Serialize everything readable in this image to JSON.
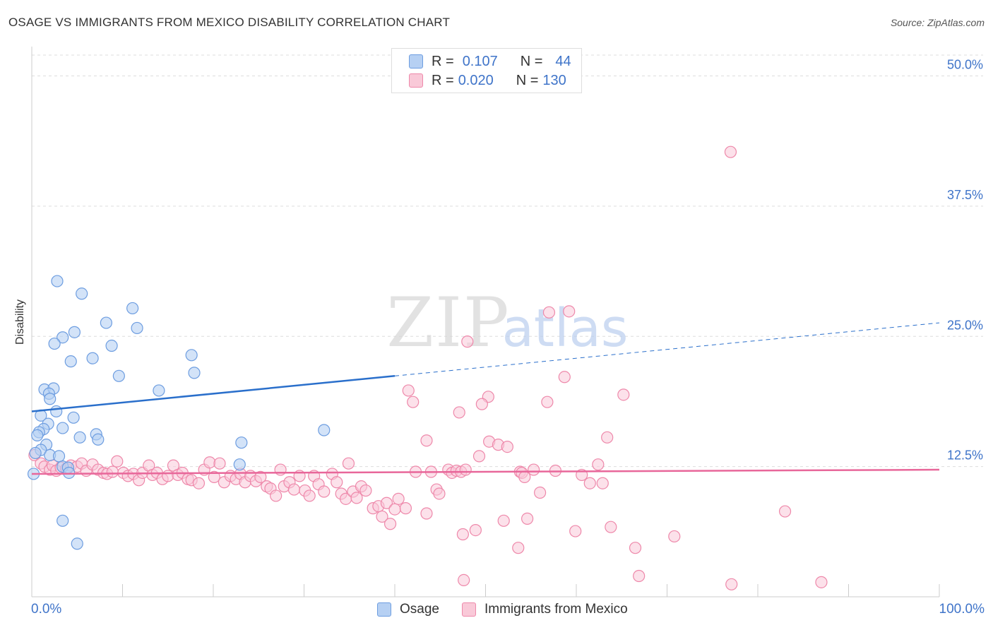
{
  "header": {
    "title": "OSAGE VS IMMIGRANTS FROM MEXICO DISABILITY CORRELATION CHART",
    "source": "Source: ZipAtlas.com"
  },
  "colors": {
    "osage_fill": "#b6d0f3",
    "osage_stroke": "#6d9de0",
    "osage_line": "#2a6fcb",
    "mexico_fill": "#f9c9d8",
    "mexico_stroke": "#ee88aa",
    "mexico_line": "#e8679a",
    "axis_label": "#3f74c9",
    "grid": "#dddddd"
  },
  "legend": {
    "rows": [
      {
        "r_label": "R =",
        "r_value": "0.107",
        "n_label": "N =",
        "n_value": "44"
      },
      {
        "r_label": "R =",
        "r_value": "0.020",
        "n_label": "N =",
        "n_value": "130"
      }
    ]
  },
  "watermark": {
    "zip": "ZIP",
    "atlas": "atlas"
  },
  "chart_data": {
    "type": "scatter",
    "title": "OSAGE VS IMMIGRANTS FROM MEXICO DISABILITY CORRELATION CHART",
    "xlabel": "",
    "ylabel": "Disability",
    "xlim": [
      0,
      100
    ],
    "ylim": [
      0,
      52
    ],
    "x_tick_labels": [
      "0.0%",
      "100.0%"
    ],
    "y_ticks": [
      12.5,
      25.0,
      37.5,
      50.0
    ],
    "y_tick_labels": [
      "12.5%",
      "25.0%",
      "37.5%",
      "50.0%"
    ],
    "grid": true,
    "legend_position": "bottom",
    "series": [
      {
        "name": "Osage",
        "r": 0.107,
        "n": 44,
        "trend": {
          "x": [
            0,
            40
          ],
          "y": [
            17.8,
            21.2
          ],
          "dashed_to": [
            100,
            26.3
          ]
        },
        "points": [
          [
            2.8,
            30.3
          ],
          [
            5.5,
            29.1
          ],
          [
            11.1,
            27.7
          ],
          [
            8.2,
            26.3
          ],
          [
            11.6,
            25.8
          ],
          [
            4.7,
            25.4
          ],
          [
            3.4,
            24.9
          ],
          [
            2.5,
            24.3
          ],
          [
            8.8,
            24.1
          ],
          [
            17.6,
            23.2
          ],
          [
            6.7,
            22.9
          ],
          [
            4.3,
            22.6
          ],
          [
            17.9,
            21.5
          ],
          [
            9.6,
            21.2
          ],
          [
            1.4,
            19.9
          ],
          [
            2.4,
            20.0
          ],
          [
            14.0,
            19.8
          ],
          [
            1.9,
            19.5
          ],
          [
            2.0,
            19.0
          ],
          [
            2.7,
            17.8
          ],
          [
            1.0,
            17.4
          ],
          [
            4.6,
            17.2
          ],
          [
            1.8,
            16.6
          ],
          [
            1.3,
            16.1
          ],
          [
            3.4,
            16.2
          ],
          [
            32.2,
            16.0
          ],
          [
            0.8,
            15.8
          ],
          [
            0.6,
            15.5
          ],
          [
            7.1,
            15.6
          ],
          [
            5.3,
            15.3
          ],
          [
            7.3,
            15.1
          ],
          [
            23.1,
            14.8
          ],
          [
            1.6,
            14.6
          ],
          [
            1.0,
            14.1
          ],
          [
            0.4,
            13.8
          ],
          [
            2.0,
            13.6
          ],
          [
            3.0,
            13.5
          ],
          [
            3.4,
            12.5
          ],
          [
            4.0,
            12.4
          ],
          [
            22.9,
            12.7
          ],
          [
            4.1,
            11.9
          ],
          [
            0.2,
            11.8
          ],
          [
            3.4,
            7.3
          ],
          [
            5.0,
            5.1
          ]
        ]
      },
      {
        "name": "Immigrants from Mexico",
        "r": 0.02,
        "n": 130,
        "trend": {
          "x": [
            0,
            100
          ],
          "y": [
            11.8,
            12.2
          ]
        },
        "points": [
          [
            77.0,
            42.7
          ],
          [
            57.0,
            27.3
          ],
          [
            59.2,
            27.4
          ],
          [
            48.0,
            24.5
          ],
          [
            58.7,
            21.1
          ],
          [
            41.5,
            19.8
          ],
          [
            50.3,
            19.2
          ],
          [
            65.2,
            19.4
          ],
          [
            42.0,
            18.7
          ],
          [
            49.6,
            18.5
          ],
          [
            56.8,
            18.7
          ],
          [
            47.1,
            17.7
          ],
          [
            43.5,
            15.0
          ],
          [
            50.4,
            14.9
          ],
          [
            63.4,
            15.3
          ],
          [
            51.4,
            14.6
          ],
          [
            52.4,
            14.4
          ],
          [
            49.3,
            13.5
          ],
          [
            62.4,
            12.7
          ],
          [
            0.3,
            13.6
          ],
          [
            1.0,
            12.8
          ],
          [
            1.4,
            12.5
          ],
          [
            2.0,
            12.2
          ],
          [
            2.3,
            12.6
          ],
          [
            2.7,
            12.1
          ],
          [
            3.2,
            12.4
          ],
          [
            3.8,
            12.3
          ],
          [
            4.3,
            12.6
          ],
          [
            5.0,
            12.5
          ],
          [
            5.5,
            12.8
          ],
          [
            6.0,
            12.1
          ],
          [
            6.7,
            12.7
          ],
          [
            7.3,
            12.2
          ],
          [
            7.9,
            11.9
          ],
          [
            8.3,
            11.8
          ],
          [
            8.9,
            12.0
          ],
          [
            9.4,
            13.0
          ],
          [
            10.1,
            11.9
          ],
          [
            10.6,
            11.6
          ],
          [
            11.2,
            11.8
          ],
          [
            11.8,
            11.2
          ],
          [
            12.2,
            11.9
          ],
          [
            12.9,
            12.6
          ],
          [
            13.3,
            11.7
          ],
          [
            13.8,
            11.9
          ],
          [
            14.4,
            11.3
          ],
          [
            15.0,
            11.6
          ],
          [
            15.6,
            12.6
          ],
          [
            16.1,
            11.7
          ],
          [
            16.6,
            11.9
          ],
          [
            17.2,
            11.3
          ],
          [
            17.6,
            11.2
          ],
          [
            18.4,
            10.9
          ],
          [
            19.0,
            12.2
          ],
          [
            19.6,
            12.9
          ],
          [
            20.1,
            11.5
          ],
          [
            20.7,
            12.8
          ],
          [
            21.2,
            11.0
          ],
          [
            21.9,
            11.6
          ],
          [
            22.5,
            11.3
          ],
          [
            23.0,
            11.8
          ],
          [
            23.5,
            11.0
          ],
          [
            24.1,
            11.6
          ],
          [
            24.7,
            11.1
          ],
          [
            25.2,
            11.5
          ],
          [
            25.9,
            10.6
          ],
          [
            26.3,
            10.4
          ],
          [
            26.9,
            9.7
          ],
          [
            27.4,
            12.2
          ],
          [
            27.8,
            10.6
          ],
          [
            28.4,
            11.0
          ],
          [
            28.9,
            10.3
          ],
          [
            29.5,
            11.6
          ],
          [
            30.1,
            10.2
          ],
          [
            30.6,
            9.7
          ],
          [
            31.1,
            11.6
          ],
          [
            31.6,
            10.8
          ],
          [
            32.2,
            10.1
          ],
          [
            33.1,
            11.8
          ],
          [
            33.6,
            11.0
          ],
          [
            34.1,
            9.9
          ],
          [
            34.6,
            9.4
          ],
          [
            34.9,
            12.8
          ],
          [
            35.4,
            10.1
          ],
          [
            35.8,
            9.5
          ],
          [
            36.3,
            10.6
          ],
          [
            36.8,
            10.2
          ],
          [
            37.6,
            8.5
          ],
          [
            38.2,
            8.7
          ],
          [
            38.6,
            7.7
          ],
          [
            39.1,
            9.0
          ],
          [
            39.5,
            7.0
          ],
          [
            40.0,
            8.4
          ],
          [
            40.4,
            9.4
          ],
          [
            41.2,
            8.5
          ],
          [
            42.3,
            12.0
          ],
          [
            43.5,
            8.0
          ],
          [
            44.0,
            12.0
          ],
          [
            44.6,
            10.3
          ],
          [
            44.9,
            9.9
          ],
          [
            45.9,
            12.2
          ],
          [
            46.3,
            11.9
          ],
          [
            46.8,
            12.1
          ],
          [
            47.3,
            12.0
          ],
          [
            47.8,
            12.2
          ],
          [
            47.5,
            6.0
          ],
          [
            48.9,
            6.4
          ],
          [
            52.0,
            7.3
          ],
          [
            53.6,
            4.7
          ],
          [
            54.6,
            7.5
          ],
          [
            53.8,
            12.0
          ],
          [
            54.0,
            11.9
          ],
          [
            54.3,
            11.5
          ],
          [
            55.3,
            12.2
          ],
          [
            56.0,
            10.0
          ],
          [
            57.7,
            12.1
          ],
          [
            59.9,
            6.3
          ],
          [
            60.6,
            11.7
          ],
          [
            61.5,
            10.9
          ],
          [
            62.9,
            10.9
          ],
          [
            63.8,
            6.7
          ],
          [
            66.5,
            4.7
          ],
          [
            66.9,
            2.0
          ],
          [
            70.8,
            5.8
          ],
          [
            77.1,
            1.2
          ],
          [
            83.0,
            8.2
          ],
          [
            87.0,
            1.4
          ],
          [
            47.6,
            1.6
          ]
        ]
      }
    ]
  }
}
